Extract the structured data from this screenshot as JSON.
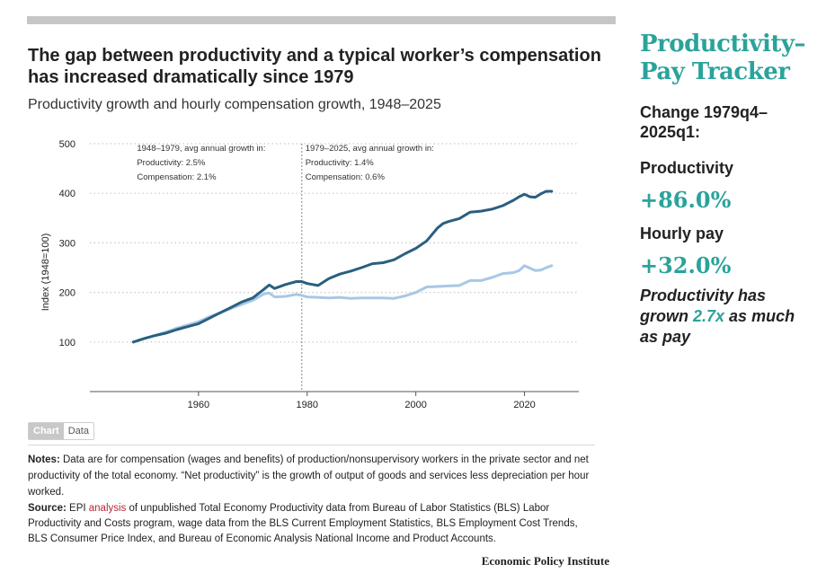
{
  "header": {
    "title": "The gap between productivity and a typical worker’s compensation has increased dramatically since 1979",
    "subtitle": "Productivity growth and hourly compensation growth, 1948–2025"
  },
  "tabs": [
    {
      "label": "Chart",
      "active": true
    },
    {
      "label": "Data",
      "active": false
    }
  ],
  "notes": {
    "label": "Notes:",
    "text": " Data are for compensation (wages and benefits) of production/nonsupervisory workers in the private sector and net productivity of the total economy. “Net productivity” is the growth of output of goods and services less depreciation per hour worked."
  },
  "source": {
    "label": "Source:",
    "text_before": " EPI ",
    "link": "analysis",
    "text_after": " of unpublished Total Economy Productivity data from Bureau of Labor Statistics (BLS) Labor Productivity and Costs program, wage data from the BLS Current Employment Statistics, BLS Employment Cost Trends, BLS Consumer Price Index, and Bureau of Economic Analysis National Income and Product Accounts."
  },
  "footer": {
    "org": "Economic Policy Institute"
  },
  "sidebar": {
    "title": "Productivity–Pay Tracker",
    "change_label": "Change 1979q4–2025q1:",
    "productivity_label": "Productivity",
    "productivity_value": "+86.0%",
    "pay_label": "Hourly pay",
    "pay_value": "+32.0%",
    "note_before": "Productivity has grown ",
    "note_highlight": "2.7x",
    "note_after": " as much as pay"
  },
  "colors": {
    "productivity": "#2a5f80",
    "compensation": "#a7c8e6",
    "accent": "#2aa39b",
    "link": "#b5283a"
  },
  "chart_data": {
    "type": "line",
    "title": "",
    "xlabel": "",
    "ylabel": "Index (1948=100)",
    "xlim": [
      1940,
      2030
    ],
    "ylim": [
      0,
      500
    ],
    "x_ticks": [
      1960,
      1980,
      2000,
      2020
    ],
    "y_ticks": [
      100,
      200,
      300,
      400,
      500
    ],
    "grid": true,
    "legend": "none",
    "divider_x": 1979,
    "annotations": [
      {
        "x": 1948,
        "lines": [
          "1948–1979, avg annual growth in:",
          "Productivity: 2.5%",
          "Compensation: 2.1%"
        ]
      },
      {
        "x": 1979,
        "lines": [
          "1979–2025, avg annual growth in:",
          "Productivity: 1.4%",
          "Compensation: 0.6%"
        ]
      }
    ],
    "series": [
      {
        "key": "productivity",
        "x": [
          1948,
          1950,
          1952,
          1954,
          1956,
          1958,
          1960,
          1962,
          1964,
          1966,
          1968,
          1970,
          1972,
          1973,
          1974,
          1976,
          1978,
          1979,
          1980,
          1982,
          1984,
          1986,
          1988,
          1990,
          1992,
          1994,
          1996,
          1998,
          2000,
          2002,
          2004,
          2005,
          2006,
          2008,
          2010,
          2012,
          2014,
          2016,
          2018,
          2019,
          2020,
          2021,
          2022,
          2023,
          2024,
          2025
        ],
        "y": [
          100,
          107,
          113,
          118,
          125,
          131,
          137,
          148,
          159,
          170,
          181,
          189,
          206,
          215,
          208,
          216,
          222,
          222,
          218,
          214,
          228,
          237,
          243,
          250,
          258,
          260,
          266,
          278,
          289,
          304,
          330,
          339,
          343,
          349,
          362,
          364,
          368,
          375,
          386,
          393,
          398,
          393,
          392,
          399,
          404,
          404
        ]
      },
      {
        "key": "compensation",
        "x": [
          1948,
          1950,
          1952,
          1954,
          1956,
          1958,
          1960,
          1962,
          1964,
          1966,
          1968,
          1970,
          1972,
          1973,
          1974,
          1976,
          1978,
          1979,
          1980,
          1982,
          1984,
          1986,
          1988,
          1990,
          1992,
          1994,
          1996,
          1998,
          2000,
          2002,
          2004,
          2006,
          2008,
          2010,
          2012,
          2014,
          2016,
          2018,
          2019,
          2020,
          2021,
          2022,
          2023,
          2024,
          2025
        ],
        "y": [
          100,
          107,
          113,
          120,
          128,
          134,
          141,
          151,
          159,
          168,
          176,
          184,
          197,
          199,
          191,
          192,
          196,
          194,
          191,
          190,
          189,
          190,
          188,
          189,
          189,
          189,
          188,
          193,
          200,
          211,
          212,
          213,
          214,
          224,
          224,
          230,
          238,
          240,
          244,
          254,
          249,
          244,
          245,
          250,
          254
        ]
      }
    ]
  }
}
